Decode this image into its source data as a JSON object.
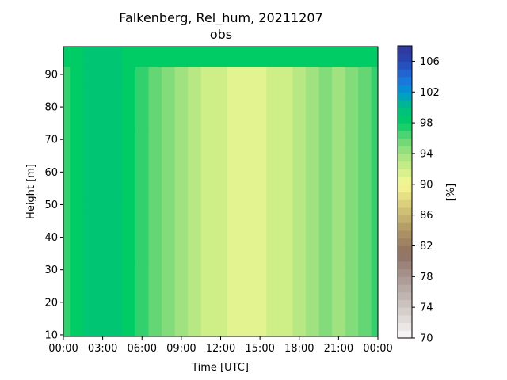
{
  "chart_data": {
    "type": "heatmap",
    "title": "Falkenberg, Rel_hum, 20211207",
    "subtitle": "obs",
    "xlabel": "Time [UTC]",
    "ylabel": "Height [m]",
    "x_ticks": [
      "00:00",
      "03:00",
      "06:00",
      "09:00",
      "12:00",
      "15:00",
      "18:00",
      "21:00",
      "00:00"
    ],
    "y_ticks": [
      10,
      20,
      30,
      40,
      50,
      60,
      70,
      80,
      90
    ],
    "xlim_hours": [
      0,
      24
    ],
    "ylim": [
      9.5,
      98.5
    ],
    "x_hours": [
      0,
      1,
      2,
      3,
      4,
      5,
      6,
      7,
      8,
      9,
      10,
      11,
      12,
      13,
      14,
      15,
      16,
      17,
      18,
      19,
      20,
      21,
      22,
      23,
      24
    ],
    "heights": [
      10,
      15,
      20,
      25,
      30,
      35,
      40,
      45,
      50,
      55,
      60,
      65,
      70,
      75,
      80,
      85,
      90,
      95,
      98
    ],
    "profile_by_hour": [
      97,
      98,
      99,
      99,
      99,
      98,
      97,
      96,
      95,
      94,
      93,
      92.5,
      92,
      91.5,
      91,
      91.5,
      92,
      92.5,
      93,
      94,
      95,
      94,
      95,
      96,
      97
    ],
    "colorbar": {
      "label": "[%]",
      "ticks": [
        70,
        74,
        78,
        82,
        86,
        90,
        94,
        98,
        102,
        106
      ],
      "range": [
        70,
        108
      ],
      "step": 1
    }
  }
}
